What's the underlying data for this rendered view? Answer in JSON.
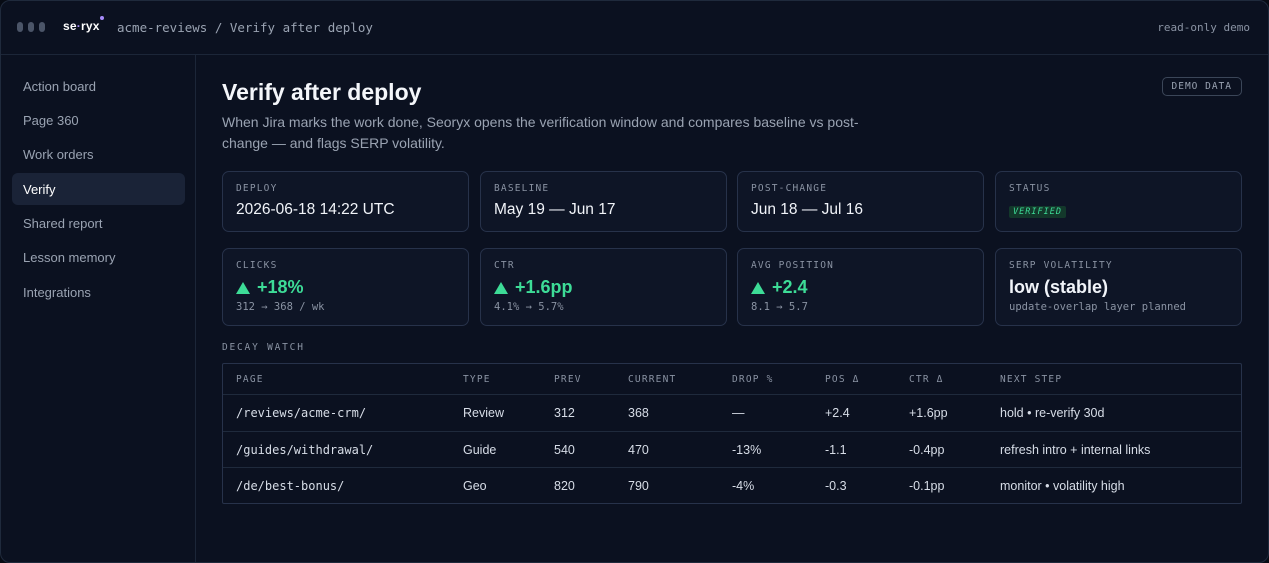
{
  "app": {
    "logo_text": "se",
    "logo_text2": "ryx",
    "breadcrumb": "acme-reviews / Verify after deploy",
    "readonly_label": "read-only demo"
  },
  "sidebar": {
    "items": [
      {
        "label": "Action board"
      },
      {
        "label": "Page 360"
      },
      {
        "label": "Work orders"
      },
      {
        "label": "Verify",
        "active": true
      },
      {
        "label": "Shared report"
      },
      {
        "label": "Lesson memory"
      },
      {
        "label": "Integrations"
      }
    ]
  },
  "main": {
    "title": "Verify after deploy",
    "description": "When Jira marks the work done, Seoryx opens the verification window and compares baseline vs post-change — and flags SERP volatility.",
    "demo_badge": "DEMO DATA",
    "summary": {
      "deploy": {
        "label": "DEPLOY",
        "value": "2026-06-18 14:22 UTC"
      },
      "baseline": {
        "label": "BASELINE",
        "value": "May 19 — Jun 17"
      },
      "post_change": {
        "label": "POST-CHANGE",
        "value": "Jun 18 — Jul 16"
      },
      "status": {
        "label": "STATUS",
        "value": "VERIFIED"
      }
    },
    "metrics": {
      "clicks": {
        "label": "CLICKS",
        "value": "+18%",
        "detail": "312 → 368 / wk"
      },
      "ctr": {
        "label": "CTR",
        "value": "+1.6pp",
        "detail": "4.1% → 5.7%"
      },
      "avg_position": {
        "label": "AVG POSITION",
        "value": "+2.4",
        "detail": "8.1 → 5.7"
      },
      "serp_volatility": {
        "label": "SERP VOLATILITY",
        "value": "low (stable)",
        "detail": "update-overlap layer planned"
      }
    },
    "decay": {
      "title": "DECAY WATCH",
      "headers": [
        "PAGE",
        "TYPE",
        "PREV",
        "CURRENT",
        "DROP %",
        "POS Δ",
        "CTR Δ",
        "NEXT STEP"
      ],
      "rows": [
        [
          "/reviews/acme-crm/",
          "Review",
          "312",
          "368",
          "—",
          "+2.4",
          "+1.6pp",
          "hold • re-verify 30d"
        ],
        [
          "/guides/withdrawal/",
          "Guide",
          "540",
          "470",
          "-13%",
          "-1.1",
          "-0.4pp",
          "refresh intro + internal links"
        ],
        [
          "/de/best-bonus/",
          "Geo",
          "820",
          "790",
          "-4%",
          "-0.3",
          "-0.1pp",
          "monitor • volatility high"
        ]
      ]
    }
  },
  "colors": {
    "background": "#0b1120",
    "accent_green": "#3ddc97",
    "active_nav": "#1a2337"
  },
  "icons": {
    "up_indicator": "triangle-up-icon"
  }
}
